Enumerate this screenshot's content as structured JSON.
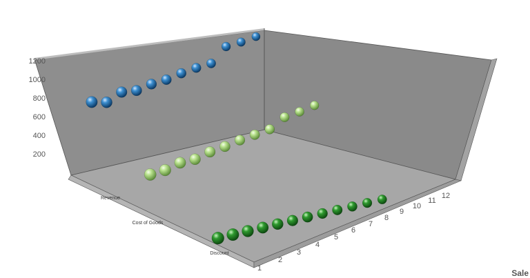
{
  "chart_data": {
    "type": "scatter",
    "projection": "3d",
    "grid": false,
    "legend": "none",
    "x": [
      1,
      2,
      3,
      4,
      5,
      6,
      7,
      8,
      9,
      10,
      11,
      12
    ],
    "x_ticks": [
      "1",
      "2",
      "3",
      "4",
      "5",
      "6",
      "7",
      "8",
      "9",
      "10",
      "11",
      "12"
    ],
    "y_ticks": [
      "200",
      "400",
      "600",
      "800",
      "1000",
      "1200"
    ],
    "ylim": [
      0,
      1200
    ],
    "categories": [
      "Revenue",
      "Cost of Goods",
      "Discount"
    ],
    "series": [
      {
        "name": "Revenue",
        "color": "#1f6fb0",
        "values": [
          800,
          760,
          830,
          810,
          840,
          850,
          880,
          900,
          910,
          1050,
          1060,
          1080
        ]
      },
      {
        "name": "Cost of Goods",
        "color": "#a8d87a",
        "values": [
          330,
          340,
          380,
          380,
          420,
          440,
          470,
          490,
          510,
          600,
          620,
          650
        ]
      },
      {
        "name": "Discount",
        "color": "#2e8b2e",
        "values": [
          0,
          0,
          0,
          0,
          0,
          0,
          0,
          0,
          0,
          0,
          0,
          0
        ]
      }
    ]
  },
  "corner_label": "Sale"
}
